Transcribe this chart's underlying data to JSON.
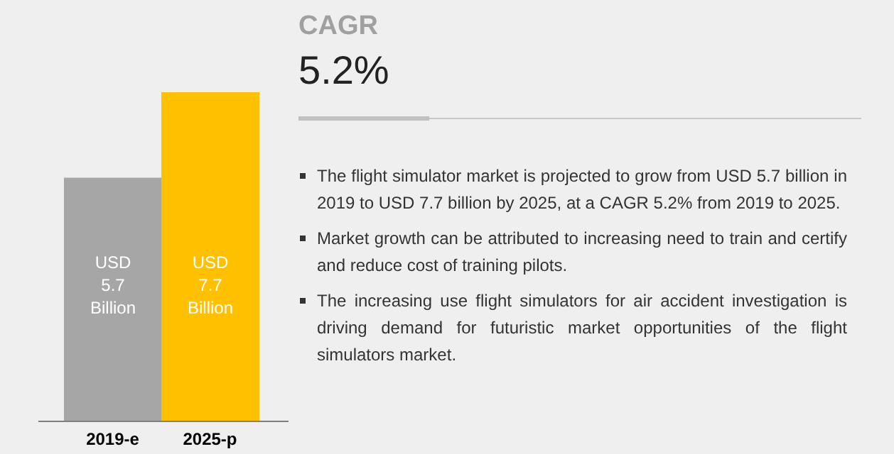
{
  "chart_data": {
    "type": "bar",
    "categories": [
      "2019-e",
      "2025-p"
    ],
    "values": [
      5.7,
      7.7
    ],
    "colors": [
      "#a6a6a6",
      "#ffc000"
    ],
    "value_labels": [
      "USD 5.7 Billion",
      "USD 7.7 Billion"
    ],
    "annotations": [
      "CAGR",
      "5.2%",
      "The flight simulator market is projected to grow from USD 5.7 billion in 2019 to USD 7.7 billion by 2025, at a CAGR 5.2% from 2019 to 2025.",
      "Market growth can be attributed to increasing need to train and certify and reduce cost of training pilots.",
      "The increasing use flight simulators for air accident investigation is driving demand for futuristic market opportunities of the flight simulators market."
    ]
  }
}
